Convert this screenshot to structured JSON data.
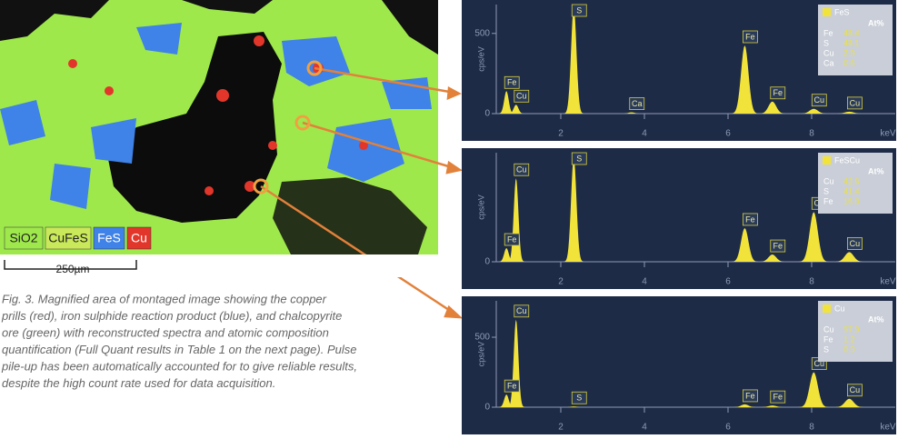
{
  "figure": {
    "map_legend": [
      "SiO2",
      "CuFeS",
      "FeS",
      "Cu"
    ],
    "scale_bar": "250µm",
    "caption": [
      "Fig. 3.  Magnified area of montaged image showing the copper",
      "prills (red), iron sulphide reaction product (blue), and chalcopyrite",
      "ore (green) with reconstructed spectra and atomic composition",
      "quantification (Full Quant results in Table 1 on the next page). Pulse",
      "pile-up has been automatically accounted for to give reliable results,",
      "despite the high count rate used for data acquisition."
    ]
  },
  "chart_data": [
    {
      "type": "spectrum",
      "ylabel": "cps/eV",
      "xlabel": "keV",
      "color": "#f2e33a",
      "xlim": [
        0,
        10
      ],
      "xticks": [
        2,
        4,
        6,
        8
      ],
      "ylim": [
        0,
        680
      ],
      "yticks": [
        0,
        500
      ],
      "x": [
        0.7,
        0.93,
        2.31,
        3.69,
        6.4,
        7.06,
        8.05,
        8.9
      ],
      "values": [
        140,
        55,
        665,
        8,
        425,
        75,
        30,
        12
      ],
      "peak_labels": [
        "Fe",
        "Cu",
        "S",
        "Ca",
        "Fe",
        "Fe",
        "Cu",
        "Cu"
      ],
      "peak_label_x": [
        0.7,
        0.93,
        2.31,
        3.69,
        6.4,
        7.06,
        8.05,
        8.9
      ],
      "legend": {
        "title": "FeS",
        "header": "At%",
        "elements": [
          "Fe",
          "S",
          "Cu",
          "Ca"
        ],
        "values": [
          "48.4",
          "48.1",
          "2.9",
          "0.6"
        ]
      }
    },
    {
      "type": "spectrum",
      "ylabel": "cps/eV",
      "xlabel": "keV",
      "color": "#f2e33a",
      "xlim": [
        0,
        10
      ],
      "xticks": [
        2,
        4,
        6,
        8
      ],
      "ylim": [
        0,
        680
      ],
      "yticks": [
        0
      ],
      "x": [
        0.7,
        0.93,
        2.31,
        6.4,
        7.06,
        8.05,
        8.9
      ],
      "values": [
        85,
        520,
        650,
        210,
        45,
        310,
        60
      ],
      "peak_labels": [
        "Fe",
        "Cu",
        "S",
        "Fe",
        "Fe",
        "Cu",
        "Cu"
      ],
      "peak_label_x": [
        0.7,
        0.93,
        2.31,
        6.4,
        7.06,
        8.05,
        8.9
      ],
      "legend": {
        "title": "FeSCu",
        "header": "At%",
        "elements": [
          "Cu",
          "S",
          "Fe"
        ],
        "values": [
          "42.6",
          "41.4",
          "16.0"
        ]
      }
    },
    {
      "type": "spectrum",
      "ylabel": "cps/eV",
      "xlabel": "keV",
      "color": "#f2e33a",
      "xlim": [
        0,
        10
      ],
      "xticks": [
        2,
        4,
        6,
        8
      ],
      "ylim": [
        0,
        760
      ],
      "yticks": [
        0,
        500
      ],
      "x": [
        0.7,
        0.93,
        2.31,
        6.4,
        7.06,
        8.05,
        8.9
      ],
      "values": [
        90,
        625,
        5,
        20,
        12,
        250,
        60
      ],
      "peak_labels": [
        "Fe",
        "Cu",
        "S",
        "Fe",
        "Fe",
        "Cu",
        "Cu"
      ],
      "peak_label_x": [
        0.7,
        0.93,
        2.31,
        6.4,
        7.06,
        8.05,
        8.9
      ],
      "legend": {
        "title": "Cu",
        "header": "At%",
        "elements": [
          "Cu",
          "Fe",
          "S"
        ],
        "values": [
          "97.9",
          "1.2",
          "0.9"
        ]
      }
    }
  ]
}
